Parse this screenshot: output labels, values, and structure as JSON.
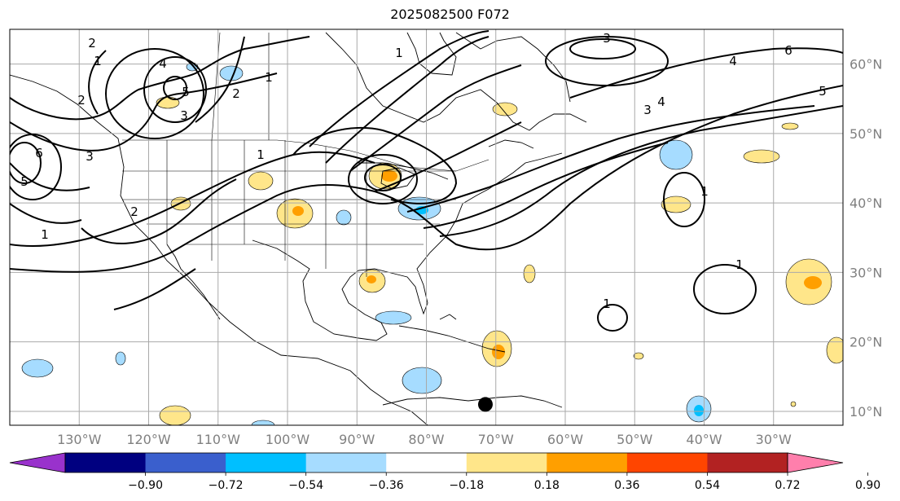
{
  "title": "2025082500 F072",
  "map": {
    "type": "contour-map",
    "projection": "equirectangular",
    "lon_range": [
      -140,
      -20
    ],
    "lat_range": [
      8,
      65
    ],
    "grid": true,
    "lon_ticks": [
      "130°W",
      "120°W",
      "110°W",
      "100°W",
      "90°W",
      "80°W",
      "70°W",
      "60°W",
      "50°W",
      "40°W",
      "30°W"
    ],
    "lat_ticks": [
      "60°N",
      "50°N",
      "40°N",
      "30°N",
      "20°N",
      "10°N"
    ],
    "contour_labels": [
      "2",
      "1",
      "4",
      "5",
      "3",
      "2",
      "6",
      "3",
      "5",
      "1",
      "2",
      "1",
      "1",
      "2",
      "3",
      "4",
      "6",
      "5",
      "3",
      "4",
      "1",
      "1",
      "1",
      "1"
    ],
    "storm_marker": {
      "lon": -71.5,
      "lat": 11
    }
  },
  "colorbar": {
    "ticks": [
      "−0.90",
      "−0.72",
      "−0.54",
      "−0.36",
      "−0.18",
      "0.18",
      "0.36",
      "0.54",
      "0.72",
      "0.90"
    ],
    "colors": [
      "#9932cc",
      "#000080",
      "#3a5fcd",
      "#00bfff",
      "#a6dcff",
      "#ffffff",
      "#ffe68a",
      "#ff9f00",
      "#ff4500",
      "#b22222",
      "#ff7fac"
    ],
    "extend": "both"
  }
}
